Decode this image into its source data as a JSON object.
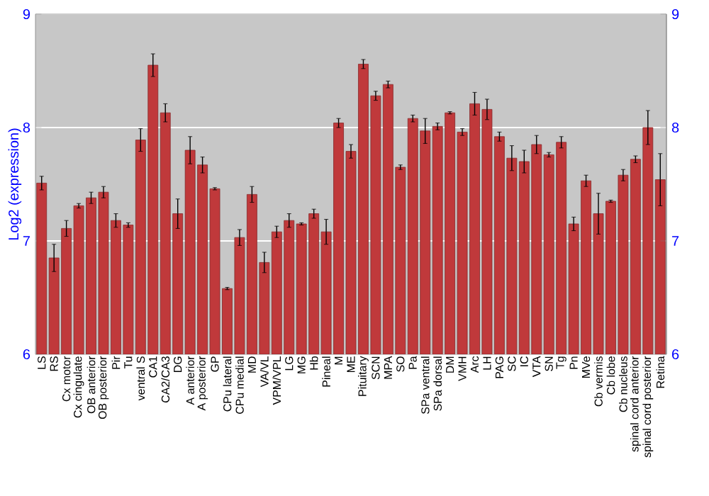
{
  "chart_data": {
    "type": "bar",
    "ylabel": "Log2 (expression)",
    "categories": [
      "LS",
      "RS",
      "Cx motor",
      "Cx cingulate",
      "OB anterior",
      "OB posterior",
      "Pir",
      "Tu",
      "ventral S",
      "CA1",
      "CA2/CA3",
      "DG",
      "A anterior",
      "A posterior",
      "GP",
      "CPu lateral",
      "CPu medial",
      "MD",
      "VA/VL",
      "VPM/VPL",
      "LG",
      "MG",
      "Hb",
      "Pineal",
      "M",
      "ME",
      "Pituitary",
      "SCN",
      "MPA",
      "SO",
      "Pa",
      "SPa ventral",
      "SPa dorsal",
      "DM",
      "VMH",
      "Arc",
      "LH",
      "PAG",
      "SC",
      "IC",
      "VTA",
      "SN",
      "Tg",
      "Pn",
      "MVe",
      "Cb vermis",
      "Cb lobe",
      "Cb nucleus",
      "spinal cord anterior",
      "spinal cord posterior",
      "Retina"
    ],
    "values": [
      7.51,
      6.85,
      7.11,
      7.31,
      7.38,
      7.43,
      7.18,
      7.14,
      7.89,
      8.55,
      8.13,
      7.24,
      7.8,
      7.67,
      7.46,
      6.58,
      7.03,
      7.41,
      6.81,
      7.08,
      7.18,
      7.15,
      7.24,
      7.08,
      8.04,
      7.79,
      8.56,
      8.28,
      8.38,
      7.65,
      8.08,
      7.97,
      8.01,
      8.13,
      7.96,
      8.21,
      8.16,
      7.92,
      7.73,
      7.7,
      7.85,
      7.76,
      7.87,
      7.15,
      7.53,
      7.24,
      7.35,
      7.58,
      7.72,
      8.0,
      7.54
    ],
    "errors": [
      0.06,
      0.12,
      0.07,
      0.02,
      0.05,
      0.05,
      0.06,
      0.02,
      0.1,
      0.1,
      0.08,
      0.13,
      0.12,
      0.07,
      0.01,
      0.01,
      0.07,
      0.07,
      0.09,
      0.05,
      0.06,
      0.01,
      0.04,
      0.11,
      0.04,
      0.06,
      0.04,
      0.04,
      0.03,
      0.02,
      0.03,
      0.11,
      0.03,
      0.01,
      0.03,
      0.1,
      0.09,
      0.04,
      0.11,
      0.1,
      0.08,
      0.02,
      0.05,
      0.06,
      0.05,
      0.18,
      0.01,
      0.05,
      0.03,
      0.15,
      0.23
    ],
    "color": "#c0393b",
    "ylim": [
      6,
      9
    ],
    "yticks": [
      6,
      7,
      8,
      9
    ],
    "y2lim": [
      6,
      9
    ],
    "y2ticks": [
      6,
      7,
      8,
      9
    ],
    "grid": "y"
  }
}
